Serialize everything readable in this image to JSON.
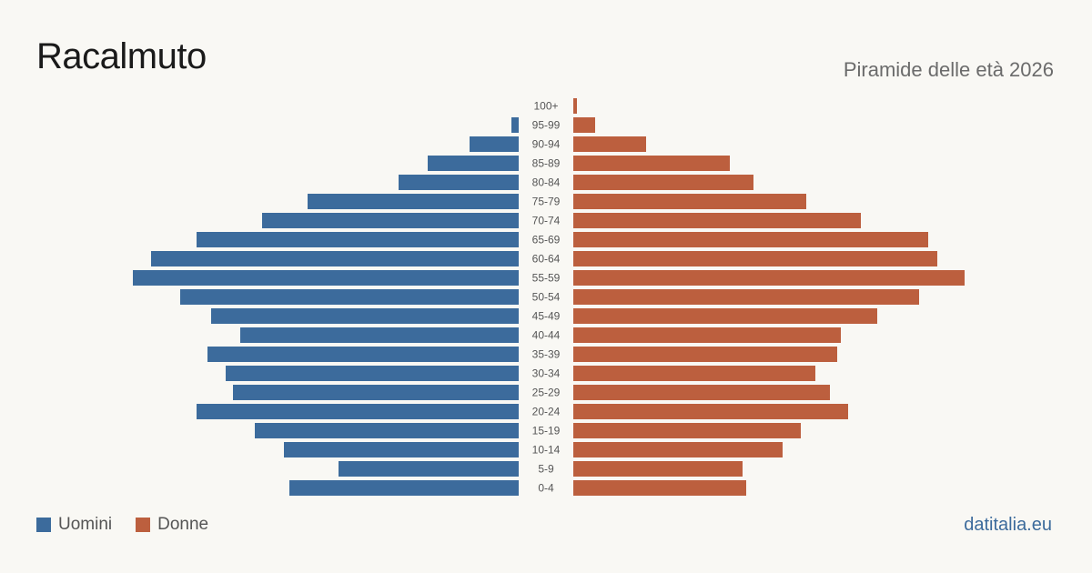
{
  "header": {
    "title": "Racalmuto",
    "subtitle": "Piramide delle età 2026"
  },
  "legend": {
    "men_label": "Uomini",
    "women_label": "Donne"
  },
  "footer": {
    "brand": "datitalia.eu"
  },
  "colors": {
    "men": "#3c6b9c",
    "women": "#bc5f3e",
    "age_label": "#555555"
  },
  "chart_data": {
    "type": "bar",
    "orientation": "horizontal-pyramid",
    "categories": [
      "100+",
      "95-99",
      "90-94",
      "85-89",
      "80-84",
      "75-79",
      "70-74",
      "65-69",
      "60-64",
      "55-59",
      "50-54",
      "45-49",
      "40-44",
      "35-39",
      "30-34",
      "25-29",
      "20-24",
      "15-19",
      "10-14",
      "5-9",
      "0-4"
    ],
    "series": [
      {
        "name": "Uomini",
        "values": [
          0,
          4,
          27,
          50,
          66,
          116,
          141,
          177,
          202,
          212,
          186,
          169,
          153,
          171,
          161,
          157,
          177,
          145,
          129,
          99,
          126
        ]
      },
      {
        "name": "Donne",
        "values": [
          2,
          12,
          40,
          86,
          99,
          128,
          158,
          195,
          200,
          215,
          190,
          167,
          147,
          145,
          133,
          141,
          151,
          125,
          115,
          93,
          95
        ]
      }
    ],
    "grid": false,
    "legend_position": "bottom-left"
  }
}
